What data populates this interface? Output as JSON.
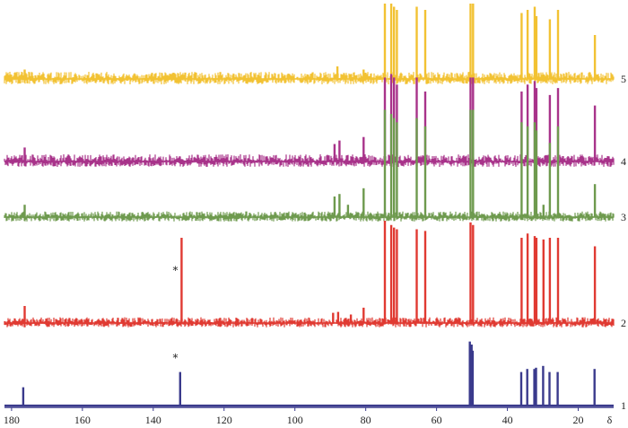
{
  "chart_data": {
    "type": "line",
    "title": "",
    "xlabel": "δ",
    "ylabel": "",
    "x_reversed": true,
    "xlim": [
      182,
      10
    ],
    "ticks": [
      180,
      160,
      140,
      120,
      100,
      80,
      60,
      40,
      20
    ],
    "tick_labels": [
      "180",
      "160",
      "140",
      "120",
      "100",
      "80",
      "60",
      "40",
      "20"
    ],
    "colors": {
      "1": "#3a3a8c",
      "2": "#e03a32",
      "3": "#6e9a4e",
      "4": "#a8338a",
      "5": "#f2c233"
    },
    "series": [
      {
        "name": "1",
        "label": "1",
        "color_key": "1",
        "noise": 0,
        "peaks": [
          {
            "ppm": 176.7,
            "h": 0.3
          },
          {
            "ppm": 132.4,
            "h": 0.55
          },
          {
            "ppm": 50.6,
            "h": 1.05
          },
          {
            "ppm": 50.1,
            "h": 1.0
          },
          {
            "ppm": 49.8,
            "h": 0.9
          },
          {
            "ppm": 36.1,
            "h": 0.55
          },
          {
            "ppm": 34.4,
            "h": 0.6
          },
          {
            "ppm": 32.4,
            "h": 0.6
          },
          {
            "ppm": 31.9,
            "h": 0.62
          },
          {
            "ppm": 29.9,
            "h": 0.65
          },
          {
            "ppm": 28.1,
            "h": 0.55
          },
          {
            "ppm": 25.8,
            "h": 0.55
          },
          {
            "ppm": 15.4,
            "h": 0.6
          }
        ]
      },
      {
        "name": "2",
        "label": "2",
        "color_key": "2",
        "noise": 1,
        "peaks": [
          {
            "ppm": 176.3,
            "h": 0.2
          },
          {
            "ppm": 132.0,
            "h": 1.0
          },
          {
            "ppm": 89.2,
            "h": 0.12
          },
          {
            "ppm": 87.8,
            "h": 0.13
          },
          {
            "ppm": 84.2,
            "h": 0.1
          },
          {
            "ppm": 80.6,
            "h": 0.18
          },
          {
            "ppm": 74.6,
            "h": 1.2
          },
          {
            "ppm": 72.8,
            "h": 1.15
          },
          {
            "ppm": 72.0,
            "h": 1.12
          },
          {
            "ppm": 71.2,
            "h": 1.1
          },
          {
            "ppm": 65.6,
            "h": 1.1
          },
          {
            "ppm": 63.2,
            "h": 1.08
          },
          {
            "ppm": 50.4,
            "h": 1.18
          },
          {
            "ppm": 49.7,
            "h": 1.15
          },
          {
            "ppm": 36.0,
            "h": 1.0
          },
          {
            "ppm": 34.3,
            "h": 1.05
          },
          {
            "ppm": 32.3,
            "h": 1.02
          },
          {
            "ppm": 31.8,
            "h": 1.0
          },
          {
            "ppm": 29.8,
            "h": 0.98
          },
          {
            "ppm": 28.0,
            "h": 1.0
          },
          {
            "ppm": 25.7,
            "h": 1.0
          },
          {
            "ppm": 15.3,
            "h": 0.9
          }
        ]
      },
      {
        "name": "3",
        "label": "3",
        "color_key": "3",
        "noise": 1,
        "peaks": [
          {
            "ppm": 176.3,
            "h": 0.15
          },
          {
            "ppm": 88.8,
            "h": 0.25
          },
          {
            "ppm": 87.4,
            "h": 0.28
          },
          {
            "ppm": 85.0,
            "h": 0.15
          },
          {
            "ppm": 80.6,
            "h": 0.35
          },
          {
            "ppm": 74.6,
            "h": 1.3
          },
          {
            "ppm": 72.8,
            "h": 1.25
          },
          {
            "ppm": 72.0,
            "h": 1.2
          },
          {
            "ppm": 71.2,
            "h": 1.15
          },
          {
            "ppm": 65.6,
            "h": 1.2
          },
          {
            "ppm": 63.2,
            "h": 1.1
          },
          {
            "ppm": 50.4,
            "h": 1.3
          },
          {
            "ppm": 49.7,
            "h": 1.3
          },
          {
            "ppm": 36.0,
            "h": 1.15
          },
          {
            "ppm": 34.3,
            "h": 1.1
          },
          {
            "ppm": 32.3,
            "h": 1.15
          },
          {
            "ppm": 31.8,
            "h": 1.05
          },
          {
            "ppm": 29.8,
            "h": 0.15
          },
          {
            "ppm": 28.0,
            "h": 0.9
          },
          {
            "ppm": 25.7,
            "h": 1.1
          },
          {
            "ppm": 15.3,
            "h": 0.4
          }
        ]
      },
      {
        "name": "4",
        "label": "4",
        "color_key": "4",
        "noise": 1,
        "peaks": [
          {
            "ppm": 176.3,
            "h": 0.2
          },
          {
            "ppm": 88.8,
            "h": 0.25
          },
          {
            "ppm": 87.4,
            "h": 0.3
          },
          {
            "ppm": 80.6,
            "h": 0.35
          },
          {
            "ppm": 74.6,
            "h": 1.2
          },
          {
            "ppm": 72.8,
            "h": 1.25
          },
          {
            "ppm": 72.0,
            "h": 1.2
          },
          {
            "ppm": 71.2,
            "h": 1.1
          },
          {
            "ppm": 65.6,
            "h": 1.2
          },
          {
            "ppm": 63.2,
            "h": 1.0
          },
          {
            "ppm": 50.4,
            "h": 1.2
          },
          {
            "ppm": 49.7,
            "h": 1.2
          },
          {
            "ppm": 36.0,
            "h": 1.0
          },
          {
            "ppm": 34.3,
            "h": 1.1
          },
          {
            "ppm": 32.3,
            "h": 1.15
          },
          {
            "ppm": 31.8,
            "h": 1.05
          },
          {
            "ppm": 28.0,
            "h": 0.95
          },
          {
            "ppm": 25.7,
            "h": 1.05
          },
          {
            "ppm": 15.3,
            "h": 0.8
          }
        ]
      },
      {
        "name": "5",
        "label": "5",
        "color_key": "5",
        "noise": 1,
        "peaks": [
          {
            "ppm": 176.3,
            "h": 0.15
          },
          {
            "ppm": 88.0,
            "h": 0.2
          },
          {
            "ppm": 80.6,
            "h": 0.15
          },
          {
            "ppm": 74.6,
            "h": 1.2
          },
          {
            "ppm": 72.8,
            "h": 1.2
          },
          {
            "ppm": 72.0,
            "h": 1.15
          },
          {
            "ppm": 71.2,
            "h": 1.1
          },
          {
            "ppm": 65.6,
            "h": 1.15
          },
          {
            "ppm": 63.2,
            "h": 1.1
          },
          {
            "ppm": 50.4,
            "h": 1.2
          },
          {
            "ppm": 49.7,
            "h": 1.2
          },
          {
            "ppm": 36.0,
            "h": 1.05
          },
          {
            "ppm": 34.3,
            "h": 1.1
          },
          {
            "ppm": 32.3,
            "h": 1.15
          },
          {
            "ppm": 31.8,
            "h": 1.0
          },
          {
            "ppm": 28.0,
            "h": 0.95
          },
          {
            "ppm": 25.7,
            "h": 1.1
          },
          {
            "ppm": 15.3,
            "h": 0.7
          }
        ]
      }
    ],
    "annotations": [
      {
        "text": "∗",
        "ppm": 132.5,
        "series": "1",
        "meaning": "marked peak"
      },
      {
        "text": "∗",
        "ppm": 132.5,
        "series": "2",
        "meaning": "marked peak"
      }
    ]
  }
}
